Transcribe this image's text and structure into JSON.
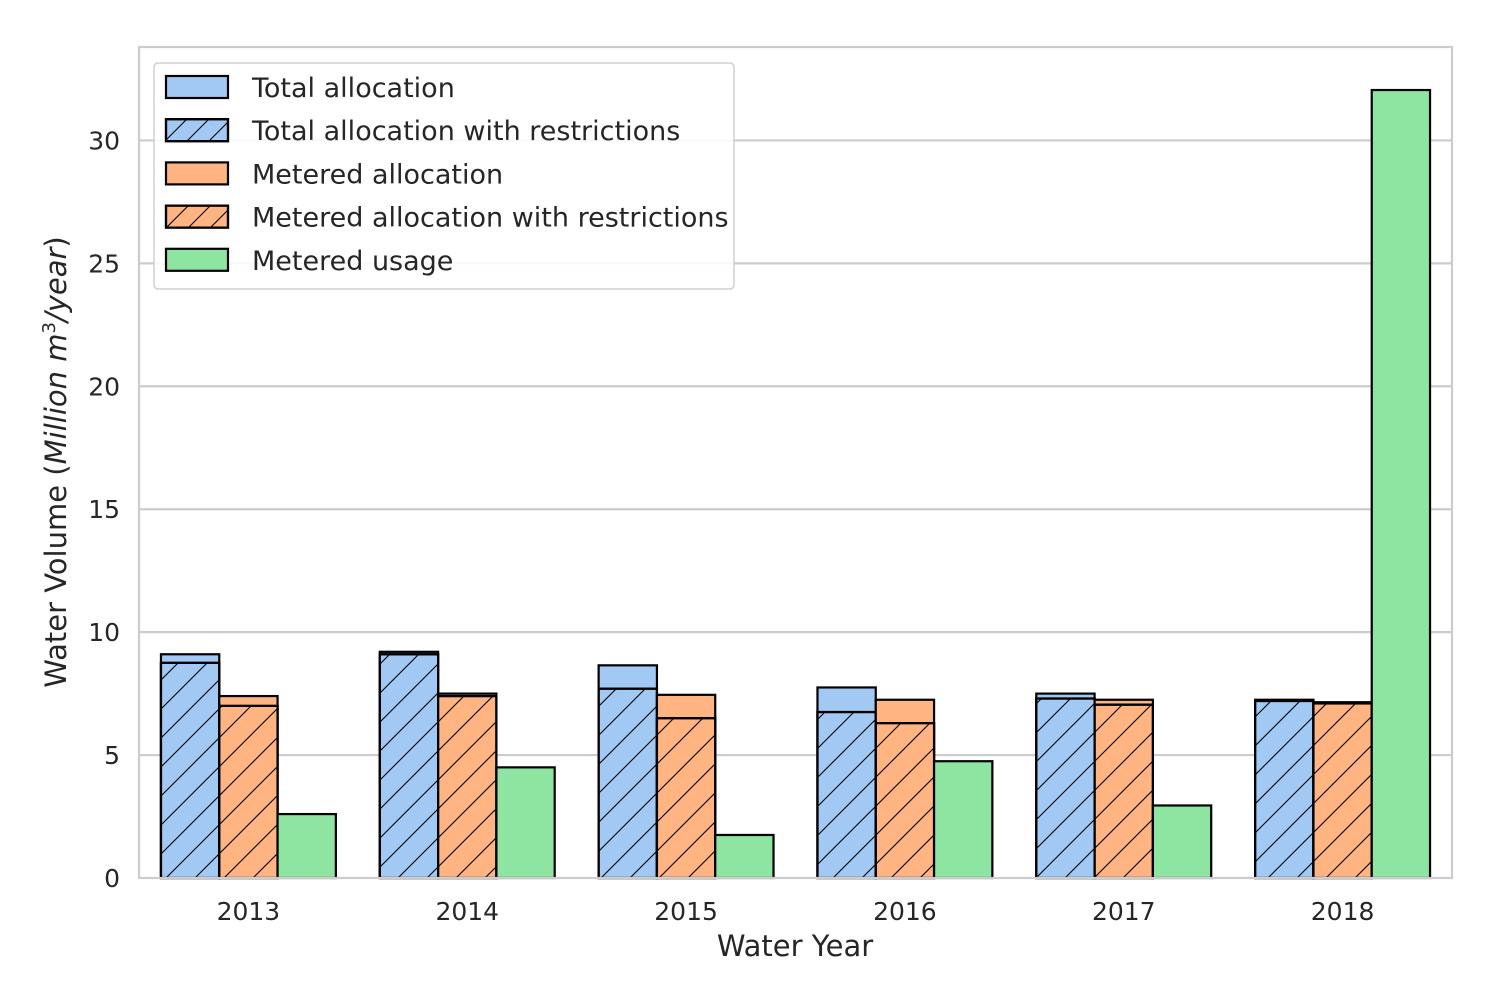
{
  "chart_data": {
    "type": "bar",
    "categories": [
      "2013",
      "2014",
      "2015",
      "2016",
      "2017",
      "2018"
    ],
    "series": [
      {
        "name": "Total allocation",
        "values": [
          9.1,
          9.2,
          8.65,
          7.75,
          7.5,
          7.25
        ],
        "color": "#a1c9f4",
        "hatch": false,
        "slot": 0
      },
      {
        "name": "Total allocation with restrictions",
        "values": [
          8.75,
          9.1,
          7.7,
          6.75,
          7.3,
          7.2
        ],
        "color": "#a1c9f4",
        "hatch": true,
        "slot": 0
      },
      {
        "name": "Metered allocation",
        "values": [
          7.4,
          7.5,
          7.45,
          7.25,
          7.25,
          7.15
        ],
        "color": "#ffb482",
        "hatch": false,
        "slot": 1
      },
      {
        "name": "Metered allocation with restrictions",
        "values": [
          7.0,
          7.4,
          6.5,
          6.3,
          7.05,
          7.1
        ],
        "color": "#ffb482",
        "hatch": true,
        "slot": 1
      },
      {
        "name": "Metered usage",
        "values": [
          2.6,
          4.5,
          1.75,
          4.75,
          2.95,
          32.05
        ],
        "color": "#8de5a1",
        "hatch": false,
        "slot": 2
      }
    ],
    "xlabel": "Water Year",
    "ylabel_parts": [
      "Water Volume (",
      "Million m",
      "3",
      "/year",
      ")"
    ],
    "ylim": [
      0,
      33.8
    ],
    "yticks": [
      "0",
      "5",
      "10",
      "15",
      "20",
      "25",
      "30"
    ],
    "grid": "horizontal",
    "legend_position": "top-left"
  }
}
